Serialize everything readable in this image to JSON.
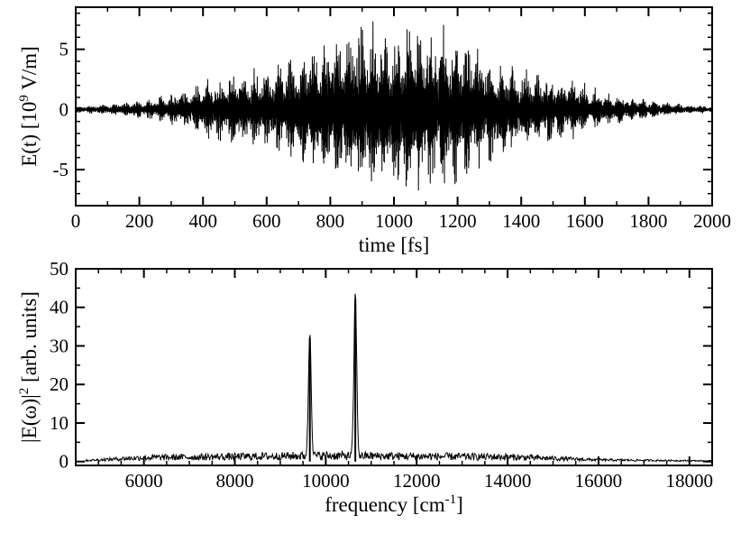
{
  "chart_data": [
    {
      "type": "line",
      "name": "time-domain-field",
      "xlabel": "time [fs]",
      "ylabel_parts": [
        "E(t) [10",
        "9",
        " V/m]"
      ],
      "xlim": [
        0,
        2000
      ],
      "ylim": [
        -8,
        8.5
      ],
      "xticks": [
        0,
        200,
        400,
        600,
        800,
        1000,
        1200,
        1400,
        1600,
        1800,
        2000
      ],
      "yticks": [
        -5,
        0,
        5
      ],
      "xtick_labels": [
        "0",
        "200",
        "400",
        "600",
        "800",
        "1000",
        "1200",
        "1400",
        "1600",
        "1800",
        "2000"
      ],
      "ytick_labels": [
        "-5",
        "0",
        "5"
      ],
      "grid": false,
      "series": [
        {
          "description_free": true,
          "envelope": {
            "x": [
              0,
              100,
              200,
              300,
              400,
              500,
              600,
              700,
              800,
              900,
              1000,
              1100,
              1200,
              1300,
              1400,
              1500,
              1600,
              1700,
              1800,
              1900,
              2000
            ],
            "y": [
              0.3,
              0.5,
              0.8,
              1.4,
              2.4,
              3.4,
              3.9,
              4.8,
              6.2,
              7.8,
              7.2,
              7.8,
              6.8,
              5.0,
              3.7,
              3.0,
              2.3,
              1.3,
              0.9,
              0.5,
              0.3
            ]
          }
        }
      ]
    },
    {
      "type": "line",
      "name": "power-spectrum",
      "xlabel_parts": [
        "frequency [cm",
        "-1",
        "]"
      ],
      "ylabel_parts": [
        "|E(ω)|",
        "2",
        " [arb. units]"
      ],
      "xlim": [
        4500,
        18500
      ],
      "ylim": [
        -1,
        50
      ],
      "xticks": [
        6000,
        8000,
        10000,
        12000,
        14000,
        16000,
        18000
      ],
      "yticks": [
        0,
        10,
        20,
        30,
        40,
        50
      ],
      "xtick_labels": [
        "6000",
        "8000",
        "10000",
        "12000",
        "14000",
        "16000",
        "18000"
      ],
      "ytick_labels": [
        "0",
        "10",
        "20",
        "30",
        "40",
        "50"
      ],
      "grid": false,
      "peaks": [
        {
          "x": 9650,
          "y": 32
        },
        {
          "x": 10650,
          "y": 42
        }
      ],
      "noise_floor": {
        "x": [
          4700,
          6000,
          8000,
          10000,
          12000,
          14000,
          16000,
          18500
        ],
        "y": [
          0.3,
          1.2,
          1.5,
          1.8,
          1.6,
          1.4,
          0.5,
          0.2
        ]
      }
    }
  ]
}
